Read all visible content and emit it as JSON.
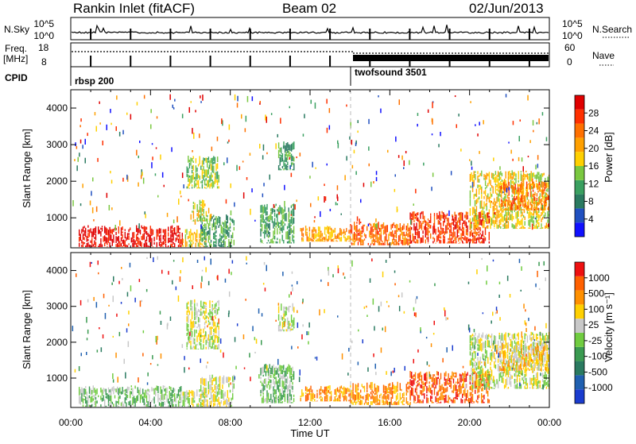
{
  "header": {
    "title": "Rankin Inlet (fitACF)",
    "beam": "Beam 02",
    "date": "02/Jun/2013"
  },
  "status_panel": {
    "nsky_label": "N.Sky",
    "nsearch_label": "N.Search",
    "noise_ticks": [
      "10^5",
      "10^0"
    ],
    "freq_label_1": "Freq.",
    "freq_label_2": "[MHz]",
    "freq_ticks": [
      "18",
      "8"
    ],
    "nave_label": "Nave",
    "nave_ticks": [
      "60",
      "0"
    ],
    "cpid_label": "CPID",
    "cpid_segments": [
      {
        "name": "rbsp 200",
        "start_hour": 0.0
      },
      {
        "name": "twofsound 3501",
        "start_hour": 14.0
      }
    ]
  },
  "chart_data": [
    {
      "type": "heatmap",
      "title": "Power",
      "ylabel": "Slant Range [km]",
      "xlabel": "Time UT",
      "xlim_hours": [
        0,
        24
      ],
      "ylim": [
        180,
        4500
      ],
      "x_ticks": [
        "00:00",
        "04:00",
        "08:00",
        "12:00",
        "16:00",
        "20:00",
        "00:00"
      ],
      "y_ticks": [
        1000,
        2000,
        3000,
        4000
      ],
      "colorbar": {
        "label": "Power [dB]",
        "ticks": [
          "4",
          "8",
          "12",
          "16",
          "20",
          "24",
          "28"
        ],
        "colors": [
          "#1010ff",
          "#2050c0",
          "#2a7a60",
          "#3aa060",
          "#7ac840",
          "#ffd000",
          "#ffa000",
          "#ff7000",
          "#ff3000",
          "#e00000"
        ]
      },
      "echo_regions": [
        {
          "t0": 0.4,
          "t1": 5.6,
          "r0": 200,
          "r1": 800,
          "level": 9
        },
        {
          "t0": 5.6,
          "t1": 6.8,
          "r0": 200,
          "r1": 700,
          "level": 5
        },
        {
          "t0": 6.5,
          "t1": 8.2,
          "r0": 200,
          "r1": 1100,
          "level": 3
        },
        {
          "t0": 5.8,
          "t1": 7.4,
          "r0": 1800,
          "r1": 2700,
          "level": 4
        },
        {
          "t0": 6.0,
          "t1": 7.0,
          "r0": 900,
          "r1": 1500,
          "level": 5
        },
        {
          "t0": 9.5,
          "t1": 11.2,
          "r0": 300,
          "r1": 1400,
          "level": 3
        },
        {
          "t0": 10.4,
          "t1": 11.2,
          "r0": 2300,
          "r1": 3100,
          "level": 3
        },
        {
          "t0": 11.5,
          "t1": 14.0,
          "r0": 350,
          "r1": 800,
          "level": 6
        },
        {
          "t0": 14.0,
          "t1": 17.0,
          "r0": 250,
          "r1": 900,
          "level": 7
        },
        {
          "t0": 17.0,
          "t1": 21.0,
          "r0": 300,
          "r1": 1200,
          "level": 8
        },
        {
          "t0": 20.0,
          "t1": 24.0,
          "r0": 700,
          "r1": 2300,
          "level": 5
        },
        {
          "t0": 21.5,
          "t1": 24.0,
          "r0": 1200,
          "r1": 2000,
          "level": 7
        }
      ]
    },
    {
      "type": "heatmap",
      "title": "Velocity",
      "ylabel": "Slant Range [km]",
      "xlabel": "Time UT",
      "xlim_hours": [
        0,
        24
      ],
      "ylim": [
        180,
        4500
      ],
      "x_ticks": [
        "00:00",
        "04:00",
        "08:00",
        "12:00",
        "16:00",
        "20:00",
        "00:00"
      ],
      "y_ticks": [
        1000,
        2000,
        3000,
        4000
      ],
      "colorbar": {
        "label": "Velocity [m s⁻¹]",
        "ticks": [
          "1000",
          "500",
          "100",
          "25",
          "-25",
          "-100",
          "-500",
          "-1000"
        ],
        "colors": [
          "#1a3ccf",
          "#2060b0",
          "#2a7a60",
          "#3a9a50",
          "#70cc40",
          "#c8c8c8",
          "#ffd000",
          "#ff9000",
          "#ff6000",
          "#ee1010"
        ]
      },
      "echo_regions": [
        {
          "t0": 0.4,
          "t1": 5.6,
          "r0": 200,
          "r1": 800,
          "level": 4
        },
        {
          "t0": 5.6,
          "t1": 6.8,
          "r0": 200,
          "r1": 700,
          "level": 5
        },
        {
          "t0": 6.5,
          "t1": 8.2,
          "r0": 200,
          "r1": 1100,
          "level": 5
        },
        {
          "t0": 5.8,
          "t1": 7.4,
          "r0": 1800,
          "r1": 3200,
          "level": 5
        },
        {
          "t0": 9.5,
          "t1": 11.2,
          "r0": 300,
          "r1": 1400,
          "level": 4
        },
        {
          "t0": 10.4,
          "t1": 11.2,
          "r0": 2300,
          "r1": 3100,
          "level": 5
        },
        {
          "t0": 11.5,
          "t1": 14.0,
          "r0": 350,
          "r1": 800,
          "level": 7
        },
        {
          "t0": 14.0,
          "t1": 17.0,
          "r0": 250,
          "r1": 900,
          "level": 7
        },
        {
          "t0": 17.0,
          "t1": 21.0,
          "r0": 300,
          "r1": 1200,
          "level": 8
        },
        {
          "t0": 20.0,
          "t1": 24.0,
          "r0": 700,
          "r1": 2300,
          "level": 5
        },
        {
          "t0": 21.5,
          "t1": 24.0,
          "r0": 1200,
          "r1": 2000,
          "level": 6
        }
      ]
    }
  ]
}
